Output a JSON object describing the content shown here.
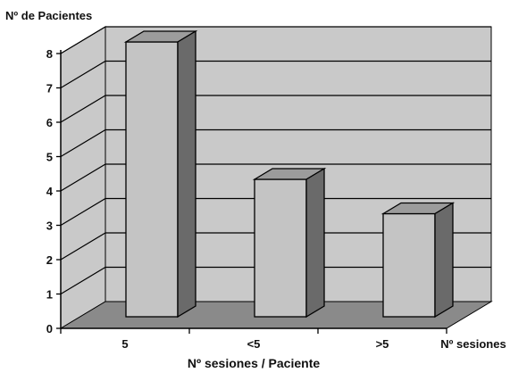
{
  "chart_data": {
    "type": "bar",
    "style": "3d",
    "categories": [
      "5",
      "<5",
      ">5"
    ],
    "values": [
      8,
      4,
      3
    ],
    "ylabel": "Nº de Pacientes",
    "xlabel": "Nº sesiones / Paciente",
    "x_end_label": "Nº sesiones",
    "ylim": [
      0,
      8
    ],
    "yticks": [
      0,
      1,
      2,
      3,
      4,
      5,
      6,
      7,
      8
    ],
    "grid": true,
    "legend": "none",
    "colors": {
      "wall": "#c9c9c9",
      "floor": "#8a8a8a",
      "bar_front": "#c4c4c4",
      "bar_top": "#9c9c9c",
      "bar_side": "#6a6a6a",
      "gridline": "#000000"
    }
  }
}
